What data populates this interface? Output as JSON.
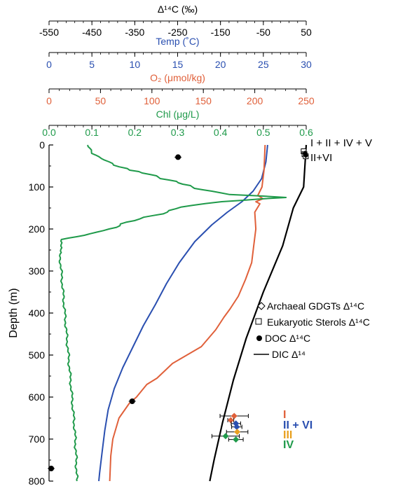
{
  "chart_data": {
    "type": "line",
    "y_axis": {
      "label": "Depth (m)",
      "range": [
        0,
        800
      ],
      "ticks": [
        "0",
        "100",
        "200",
        "300",
        "400",
        "500",
        "600",
        "700",
        "800"
      ],
      "inverted": true
    },
    "x_axes": [
      {
        "key": "d14c",
        "title": "Δ¹⁴C (‰)",
        "range": [
          -550,
          50
        ],
        "ticks": [
          -550,
          -450,
          -350,
          -250,
          -150,
          -50,
          50
        ],
        "tick_labels": [
          "-550",
          "-450",
          "-350",
          "-250",
          "-150",
          "-50",
          "50"
        ],
        "color": "#000000"
      },
      {
        "key": "temp",
        "title": "Temp (˚C)",
        "range": [
          0,
          30
        ],
        "ticks": [
          0,
          5,
          10,
          15,
          20,
          25,
          30
        ],
        "tick_labels": [
          "0",
          "5",
          "10",
          "15",
          "20",
          "25",
          "30"
        ],
        "color": "#2a4fb0"
      },
      {
        "key": "o2",
        "title": "O₂ (μmol/kg)",
        "range": [
          0,
          250
        ],
        "ticks": [
          0,
          50,
          100,
          150,
          200,
          250
        ],
        "tick_labels": [
          "0",
          "50",
          "100",
          "150",
          "200",
          "250"
        ],
        "color": "#e0603a"
      },
      {
        "key": "chl",
        "title": "Chl (μg/L)",
        "range": [
          0,
          0.6
        ],
        "ticks": [
          0,
          0.1,
          0.2,
          0.3,
          0.4,
          0.5,
          0.6
        ],
        "tick_labels": [
          "0.0",
          "0.1",
          "0.2",
          "0.3",
          "0.4",
          "0.5",
          "0.6"
        ],
        "color": "#1f9a4a"
      }
    ],
    "series": [
      {
        "key": "temp",
        "axis": "temp",
        "color": "#2a4fb0",
        "points": [
          [
            25.5,
            0
          ],
          [
            25.3,
            40
          ],
          [
            24.8,
            80
          ],
          [
            23.8,
            110
          ],
          [
            22.5,
            135
          ],
          [
            20.8,
            160
          ],
          [
            19.0,
            190
          ],
          [
            17.0,
            230
          ],
          [
            15.2,
            280
          ],
          [
            13.7,
            330
          ],
          [
            12.4,
            380
          ],
          [
            11.0,
            430
          ],
          [
            9.8,
            480
          ],
          [
            8.6,
            530
          ],
          [
            7.6,
            580
          ],
          [
            6.9,
            630
          ],
          [
            6.5,
            680
          ],
          [
            6.2,
            730
          ],
          [
            5.9,
            780
          ],
          [
            5.8,
            800
          ]
        ]
      },
      {
        "key": "o2",
        "axis": "o2",
        "color": "#e0603a",
        "points": [
          [
            210,
            0
          ],
          [
            209,
            60
          ],
          [
            207,
            100
          ],
          [
            203,
            120
          ],
          [
            208,
            128
          ],
          [
            201,
            135
          ],
          [
            205,
            140
          ],
          [
            200,
            160
          ],
          [
            201,
            200
          ],
          [
            199,
            240
          ],
          [
            197,
            280
          ],
          [
            191,
            320
          ],
          [
            184,
            360
          ],
          [
            176,
            390
          ],
          [
            170,
            410
          ],
          [
            162,
            440
          ],
          [
            148,
            480
          ],
          [
            120,
            520
          ],
          [
            105,
            555
          ],
          [
            95,
            570
          ],
          [
            85,
            600
          ],
          [
            78,
            615
          ],
          [
            68,
            650
          ],
          [
            62,
            700
          ],
          [
            60,
            740
          ],
          [
            59,
            800
          ]
        ]
      },
      {
        "key": "chl",
        "axis": "chl",
        "color": "#1f9a4a",
        "points": [
          [
            0.09,
            0
          ],
          [
            0.1,
            20
          ],
          [
            0.14,
            40
          ],
          [
            0.18,
            60
          ],
          [
            0.24,
            70
          ],
          [
            0.27,
            80
          ],
          [
            0.3,
            90
          ],
          [
            0.33,
            100
          ],
          [
            0.38,
            110
          ],
          [
            0.43,
            118
          ],
          [
            0.56,
            125
          ],
          [
            0.4,
            135
          ],
          [
            0.3,
            148
          ],
          [
            0.27,
            160
          ],
          [
            0.2,
            180
          ],
          [
            0.14,
            200
          ],
          [
            0.08,
            215
          ],
          [
            0.03,
            225
          ],
          [
            0.025,
            260
          ],
          [
            0.03,
            320
          ],
          [
            0.035,
            380
          ],
          [
            0.04,
            440
          ],
          [
            0.045,
            500
          ],
          [
            0.05,
            560
          ],
          [
            0.055,
            620
          ],
          [
            0.06,
            680
          ],
          [
            0.063,
            740
          ],
          [
            0.065,
            800
          ]
        ]
      },
      {
        "key": "dic",
        "axis": "d14c",
        "color": "#000000",
        "points": [
          [
            50,
            0
          ],
          [
            44,
            100
          ],
          [
            20,
            150
          ],
          [
            -5,
            240
          ],
          [
            -50,
            350
          ],
          [
            -90,
            460
          ],
          [
            -120,
            560
          ],
          [
            -145,
            660
          ],
          [
            -165,
            750
          ],
          [
            -175,
            800
          ]
        ]
      },
      {
        "key": "doc",
        "axis": "d14c",
        "type": "scatter",
        "color": "#000000",
        "points": [
          [
            -249,
            29
          ],
          [
            -356,
            610
          ],
          [
            -545,
            770
          ]
        ]
      }
    ],
    "sterol_points": [
      {
        "x": 44,
        "y": 15,
        "err": 6
      },
      {
        "x": 46,
        "y": 22,
        "err": 5
      },
      {
        "x": 49,
        "y": 27,
        "err": 5
      }
    ],
    "gdgt_points": [
      {
        "x": 47,
        "y": 20,
        "err": 4
      },
      {
        "x": 49,
        "y": 25,
        "err": 4
      }
    ],
    "group_points": [
      {
        "x": -118,
        "y": 645,
        "err": 33,
        "color": "#e0603a"
      },
      {
        "x": -126,
        "y": 655,
        "err": 7,
        "color": "#e0603a"
      },
      {
        "x": -114,
        "y": 663,
        "err": 11,
        "color": "#2a4fb0"
      },
      {
        "x": -112,
        "y": 671,
        "err": 12,
        "color": "#2a4fb0"
      },
      {
        "x": -111,
        "y": 683,
        "err": 25,
        "color": "#e8a020"
      },
      {
        "x": -138,
        "y": 693,
        "err": 32,
        "color": "#1f9a4a"
      },
      {
        "x": -114,
        "y": 701,
        "err": 17,
        "color": "#1f9a4a"
      }
    ],
    "group_labels": [
      {
        "text": "I",
        "color": "#e0603a",
        "y": 640
      },
      {
        "text": "II + VI",
        "color": "#2a4fb0",
        "y": 665
      },
      {
        "text": "III",
        "color": "#e8a020",
        "y": 688
      },
      {
        "text": "IV",
        "color": "#1f9a4a",
        "y": 712
      }
    ],
    "top_annotations": [
      "I + II + IV + V",
      "II+VI"
    ],
    "legend": [
      {
        "key": "gdgt",
        "symbol": "◇",
        "text": "Archaeal GDGTs Δ¹⁴C"
      },
      {
        "key": "sterols",
        "symbol": "□",
        "text": "Eukaryotic Sterols Δ¹⁴C"
      },
      {
        "key": "doc",
        "symbol": "●",
        "text": "DOC Δ¹⁴C"
      },
      {
        "key": "dic",
        "symbol": "—",
        "text": "DIC Δ¹⁴"
      }
    ]
  }
}
